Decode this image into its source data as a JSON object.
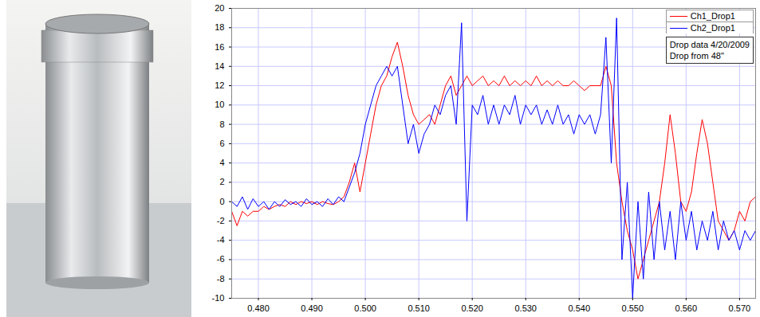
{
  "chart_data": {
    "type": "line",
    "x": [
      0.475,
      0.476,
      0.477,
      0.478,
      0.479,
      0.48,
      0.481,
      0.482,
      0.483,
      0.484,
      0.485,
      0.486,
      0.487,
      0.488,
      0.489,
      0.49,
      0.491,
      0.492,
      0.493,
      0.494,
      0.495,
      0.496,
      0.497,
      0.498,
      0.499,
      0.5,
      0.501,
      0.502,
      0.503,
      0.504,
      0.505,
      0.506,
      0.507,
      0.508,
      0.509,
      0.51,
      0.511,
      0.512,
      0.513,
      0.514,
      0.515,
      0.516,
      0.517,
      0.518,
      0.519,
      0.52,
      0.521,
      0.522,
      0.523,
      0.524,
      0.525,
      0.526,
      0.527,
      0.528,
      0.529,
      0.53,
      0.531,
      0.532,
      0.533,
      0.534,
      0.535,
      0.536,
      0.537,
      0.538,
      0.539,
      0.54,
      0.541,
      0.542,
      0.543,
      0.544,
      0.545,
      0.546,
      0.547,
      0.548,
      0.549,
      0.55,
      0.551,
      0.552,
      0.553,
      0.554,
      0.555,
      0.556,
      0.557,
      0.558,
      0.559,
      0.56,
      0.561,
      0.562,
      0.563,
      0.564,
      0.565,
      0.566,
      0.567,
      0.568,
      0.569,
      0.57,
      0.571,
      0.572,
      0.573
    ],
    "series": [
      {
        "name": "Ch1_Drop1",
        "color": "#ff0000",
        "values": [
          -1,
          -2.5,
          -1,
          -1.5,
          -1,
          -1,
          -0.5,
          -0.8,
          -0.5,
          -0.3,
          -0.5,
          0,
          -0.3,
          0,
          -0.2,
          0,
          -0.3,
          0,
          -0.2,
          -0.3,
          0,
          0.5,
          2,
          4,
          1,
          4,
          7,
          10,
          12,
          13,
          15,
          16.5,
          14,
          11,
          9,
          8,
          8.5,
          9,
          8,
          10,
          12,
          13,
          11,
          12,
          13,
          12,
          12.5,
          13,
          12,
          12.5,
          12,
          13,
          12,
          12.5,
          12,
          12.5,
          12,
          13,
          12,
          12.5,
          12,
          12.5,
          12,
          12,
          12.5,
          12,
          11.5,
          12,
          12,
          12,
          14,
          12,
          4,
          0,
          -3,
          -5,
          -8,
          -6,
          -4,
          -2,
          0,
          4,
          9,
          5,
          0,
          -1,
          1,
          5,
          8.5,
          6,
          2,
          -2,
          -3,
          -4,
          -3,
          -1,
          -2,
          0,
          0.5
        ]
      },
      {
        "name": "Ch2_Drop1",
        "color": "#0000ff",
        "values": [
          0,
          -0.5,
          0.5,
          -0.8,
          0.3,
          -0.5,
          0,
          -0.8,
          0,
          -0.5,
          0.2,
          -0.3,
          0,
          -0.5,
          0.3,
          -0.3,
          0,
          -0.5,
          0.3,
          -0.3,
          0.5,
          0,
          1.5,
          3,
          5,
          8,
          10,
          12,
          13,
          14,
          13,
          14,
          10,
          6,
          8,
          5,
          7,
          8,
          10,
          9,
          11,
          12,
          8,
          18.5,
          -2,
          10,
          9,
          11,
          8,
          10,
          8,
          10,
          9,
          11,
          8,
          10,
          9,
          10,
          8,
          9.5,
          8,
          10,
          8,
          9,
          7,
          9,
          8,
          9,
          7,
          9,
          17,
          4,
          19,
          -6,
          2,
          -10,
          0,
          -8,
          1,
          -6,
          0,
          -5,
          -1,
          -6,
          0,
          -4,
          -1,
          -5,
          -2,
          -4,
          -1,
          -5,
          -2,
          -4,
          -3,
          -5,
          -3,
          -4,
          -3
        ]
      }
    ],
    "xlim": [
      0.475,
      0.573
    ],
    "xticks": [
      {
        "value": 0.48,
        "label": "0.480"
      },
      {
        "value": 0.49,
        "label": "0.490"
      },
      {
        "value": 0.5,
        "label": "0.500"
      },
      {
        "value": 0.51,
        "label": "0.510"
      },
      {
        "value": 0.52,
        "label": "0.520"
      },
      {
        "value": 0.53,
        "label": "0.530"
      },
      {
        "value": 0.54,
        "label": "0.540"
      },
      {
        "value": 0.55,
        "label": "0.550"
      },
      {
        "value": 0.56,
        "label": "0.560"
      },
      {
        "value": 0.57,
        "label": "0.570"
      }
    ],
    "ylim": [
      -10,
      20
    ],
    "yticks": [
      -10,
      -8,
      -6,
      -4,
      -2,
      0,
      2,
      4,
      6,
      8,
      10,
      12,
      14,
      16,
      18,
      20
    ],
    "grid": true,
    "legend": "top-right",
    "annotations": [
      "Drop data 4/20/2009",
      "Drop from 48\""
    ]
  }
}
